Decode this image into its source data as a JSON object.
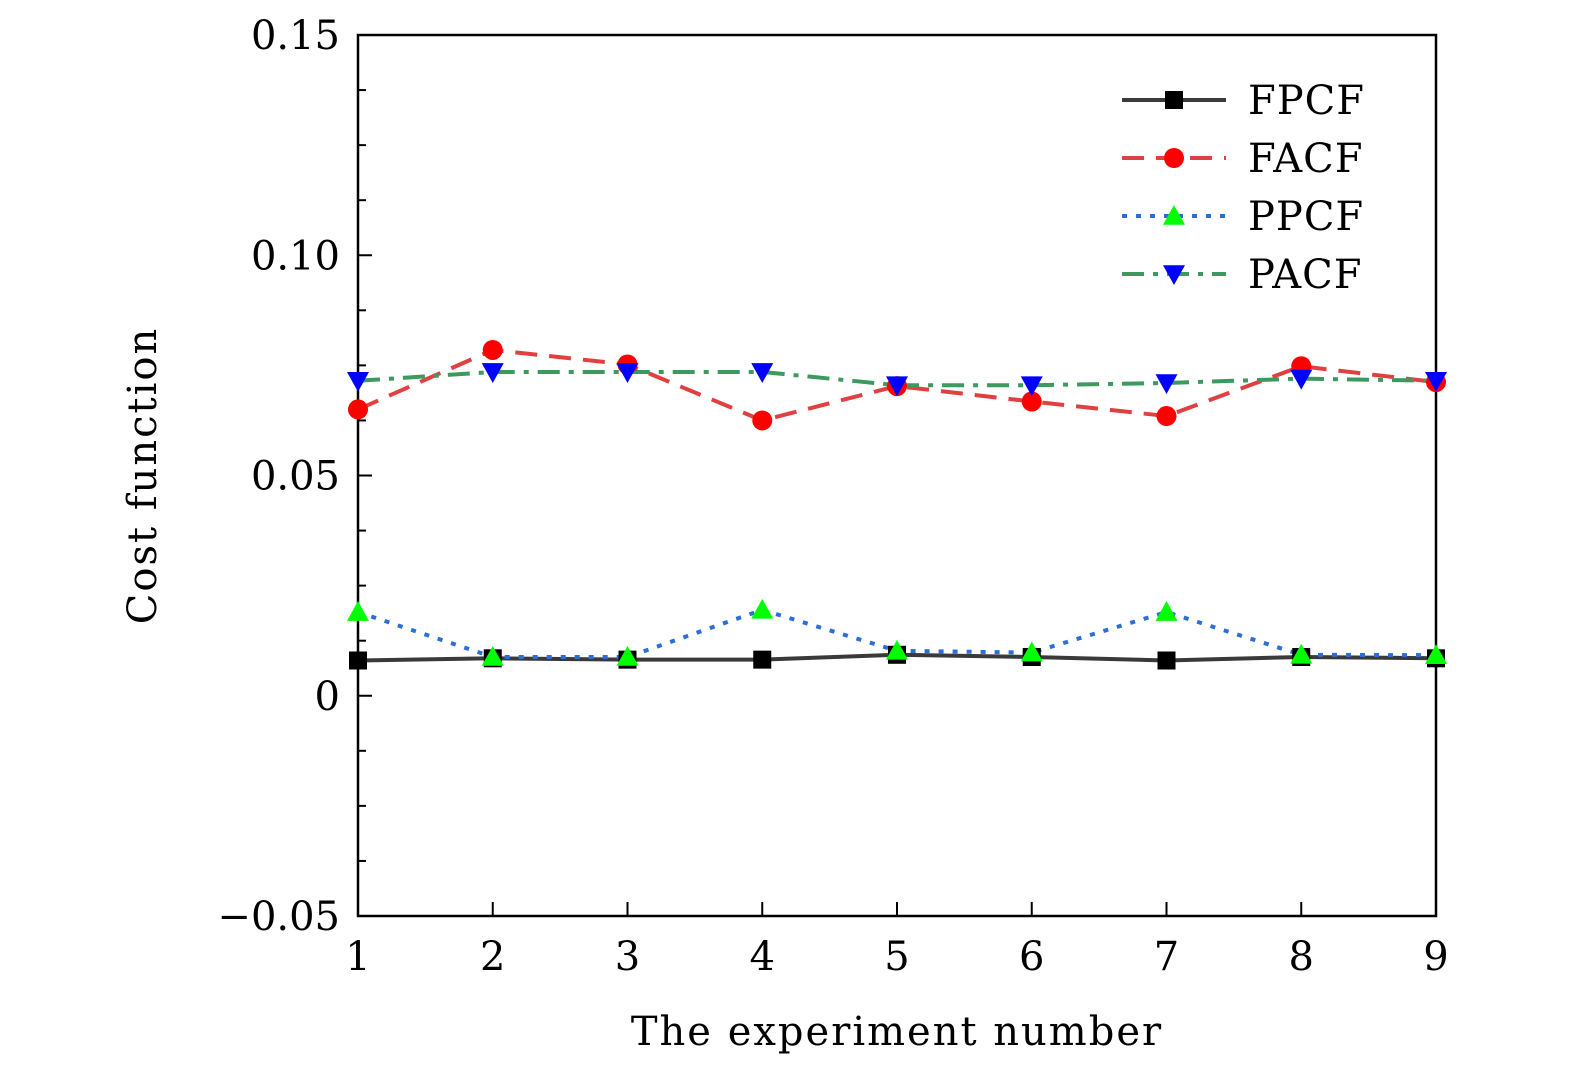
{
  "chart_data": {
    "type": "line",
    "title": "",
    "xlabel": "The experiment number",
    "ylabel": "Cost function",
    "x": [
      1,
      2,
      3,
      4,
      5,
      6,
      7,
      8,
      9
    ],
    "xlim": [
      1,
      9
    ],
    "ylim": [
      -0.05,
      0.15
    ],
    "x_ticks": [
      1,
      2,
      3,
      4,
      5,
      6,
      7,
      8,
      9
    ],
    "x_tick_labels": [
      "1",
      "2",
      "3",
      "4",
      "5",
      "6",
      "7",
      "8",
      "9"
    ],
    "y_ticks": [
      -0.05,
      0,
      0.05,
      0.1,
      0.15
    ],
    "y_tick_labels": [
      "−0.05",
      "0",
      "0.05",
      "0.10",
      "0.15"
    ],
    "y_minor_step": 0.0125,
    "grid": false,
    "legend_position": "top-right",
    "series": [
      {
        "name": "FPCF",
        "color": "#3a3a3a",
        "marker_color": "#000000",
        "line_style": "solid",
        "marker": "square",
        "values": [
          0.008,
          0.0085,
          0.0082,
          0.0082,
          0.0093,
          0.0088,
          0.008,
          0.0088,
          0.0085
        ]
      },
      {
        "name": "FACF",
        "color": "#e04040",
        "marker_color": "#ff0000",
        "line_style": "dashed",
        "marker": "circle",
        "values": [
          0.065,
          0.0785,
          0.0752,
          0.0625,
          0.0703,
          0.0668,
          0.0635,
          0.0748,
          0.0712
        ]
      },
      {
        "name": "PPCF",
        "color": "#2a6fd6",
        "marker_color": "#00ff00",
        "line_style": "dotted",
        "marker": "triangle-up",
        "values": [
          0.019,
          0.0088,
          0.0088,
          0.0195,
          0.0102,
          0.0098,
          0.019,
          0.0093,
          0.0092
        ]
      },
      {
        "name": "PACF",
        "color": "#3c9a5f",
        "marker_color": "#0000ff",
        "line_style": "dashdot",
        "marker": "triangle-down",
        "values": [
          0.0715,
          0.0735,
          0.0735,
          0.0735,
          0.0705,
          0.0705,
          0.071,
          0.072,
          0.0715
        ]
      }
    ]
  }
}
